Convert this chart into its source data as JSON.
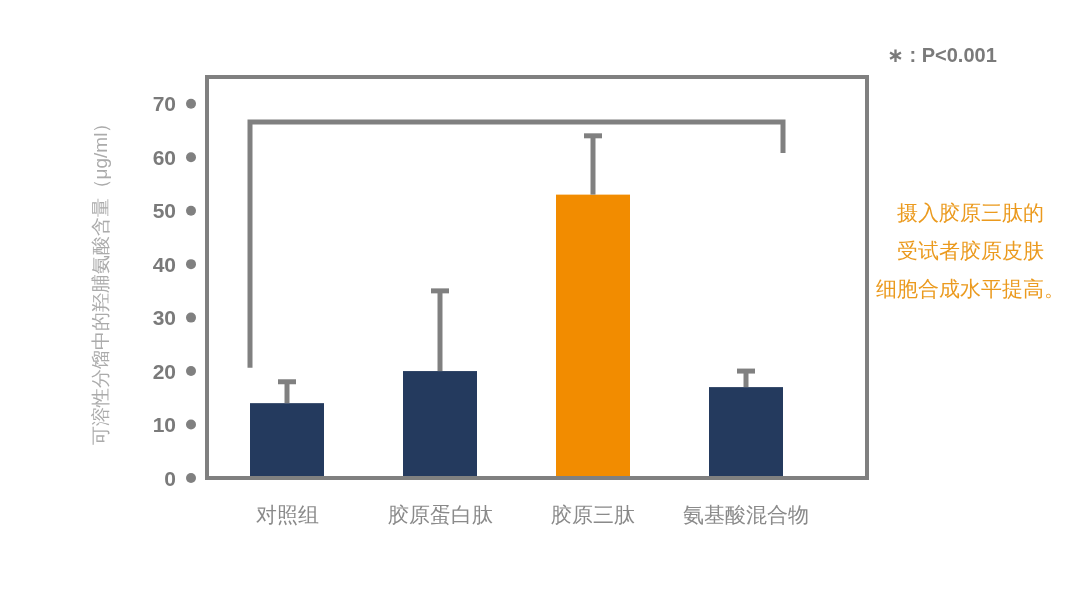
{
  "chart_data": {
    "type": "bar",
    "ylabel": "可溶性分馏中的羟脯氨酸含量（μg/ml）",
    "categories": [
      "对照组",
      "胶原蛋白肽",
      "胶原三肽",
      "氨基酸混合物"
    ],
    "values": [
      14,
      20,
      53,
      17
    ],
    "colors": [
      "#243a5e",
      "#243a5e",
      "#f28c00",
      "#243a5e"
    ],
    "errors": [
      [
        14,
        18
      ],
      [
        20,
        35
      ],
      [
        53,
        64
      ],
      [
        17,
        20
      ]
    ],
    "ylim": [
      0,
      75
    ],
    "yticks": [
      0,
      10,
      20,
      30,
      40,
      50,
      60,
      70
    ],
    "annotations": [
      "∗ : P<0.001",
      "摄入胶原三肽的受试者胶原皮肤细胞合成水平提高。"
    ]
  }
}
